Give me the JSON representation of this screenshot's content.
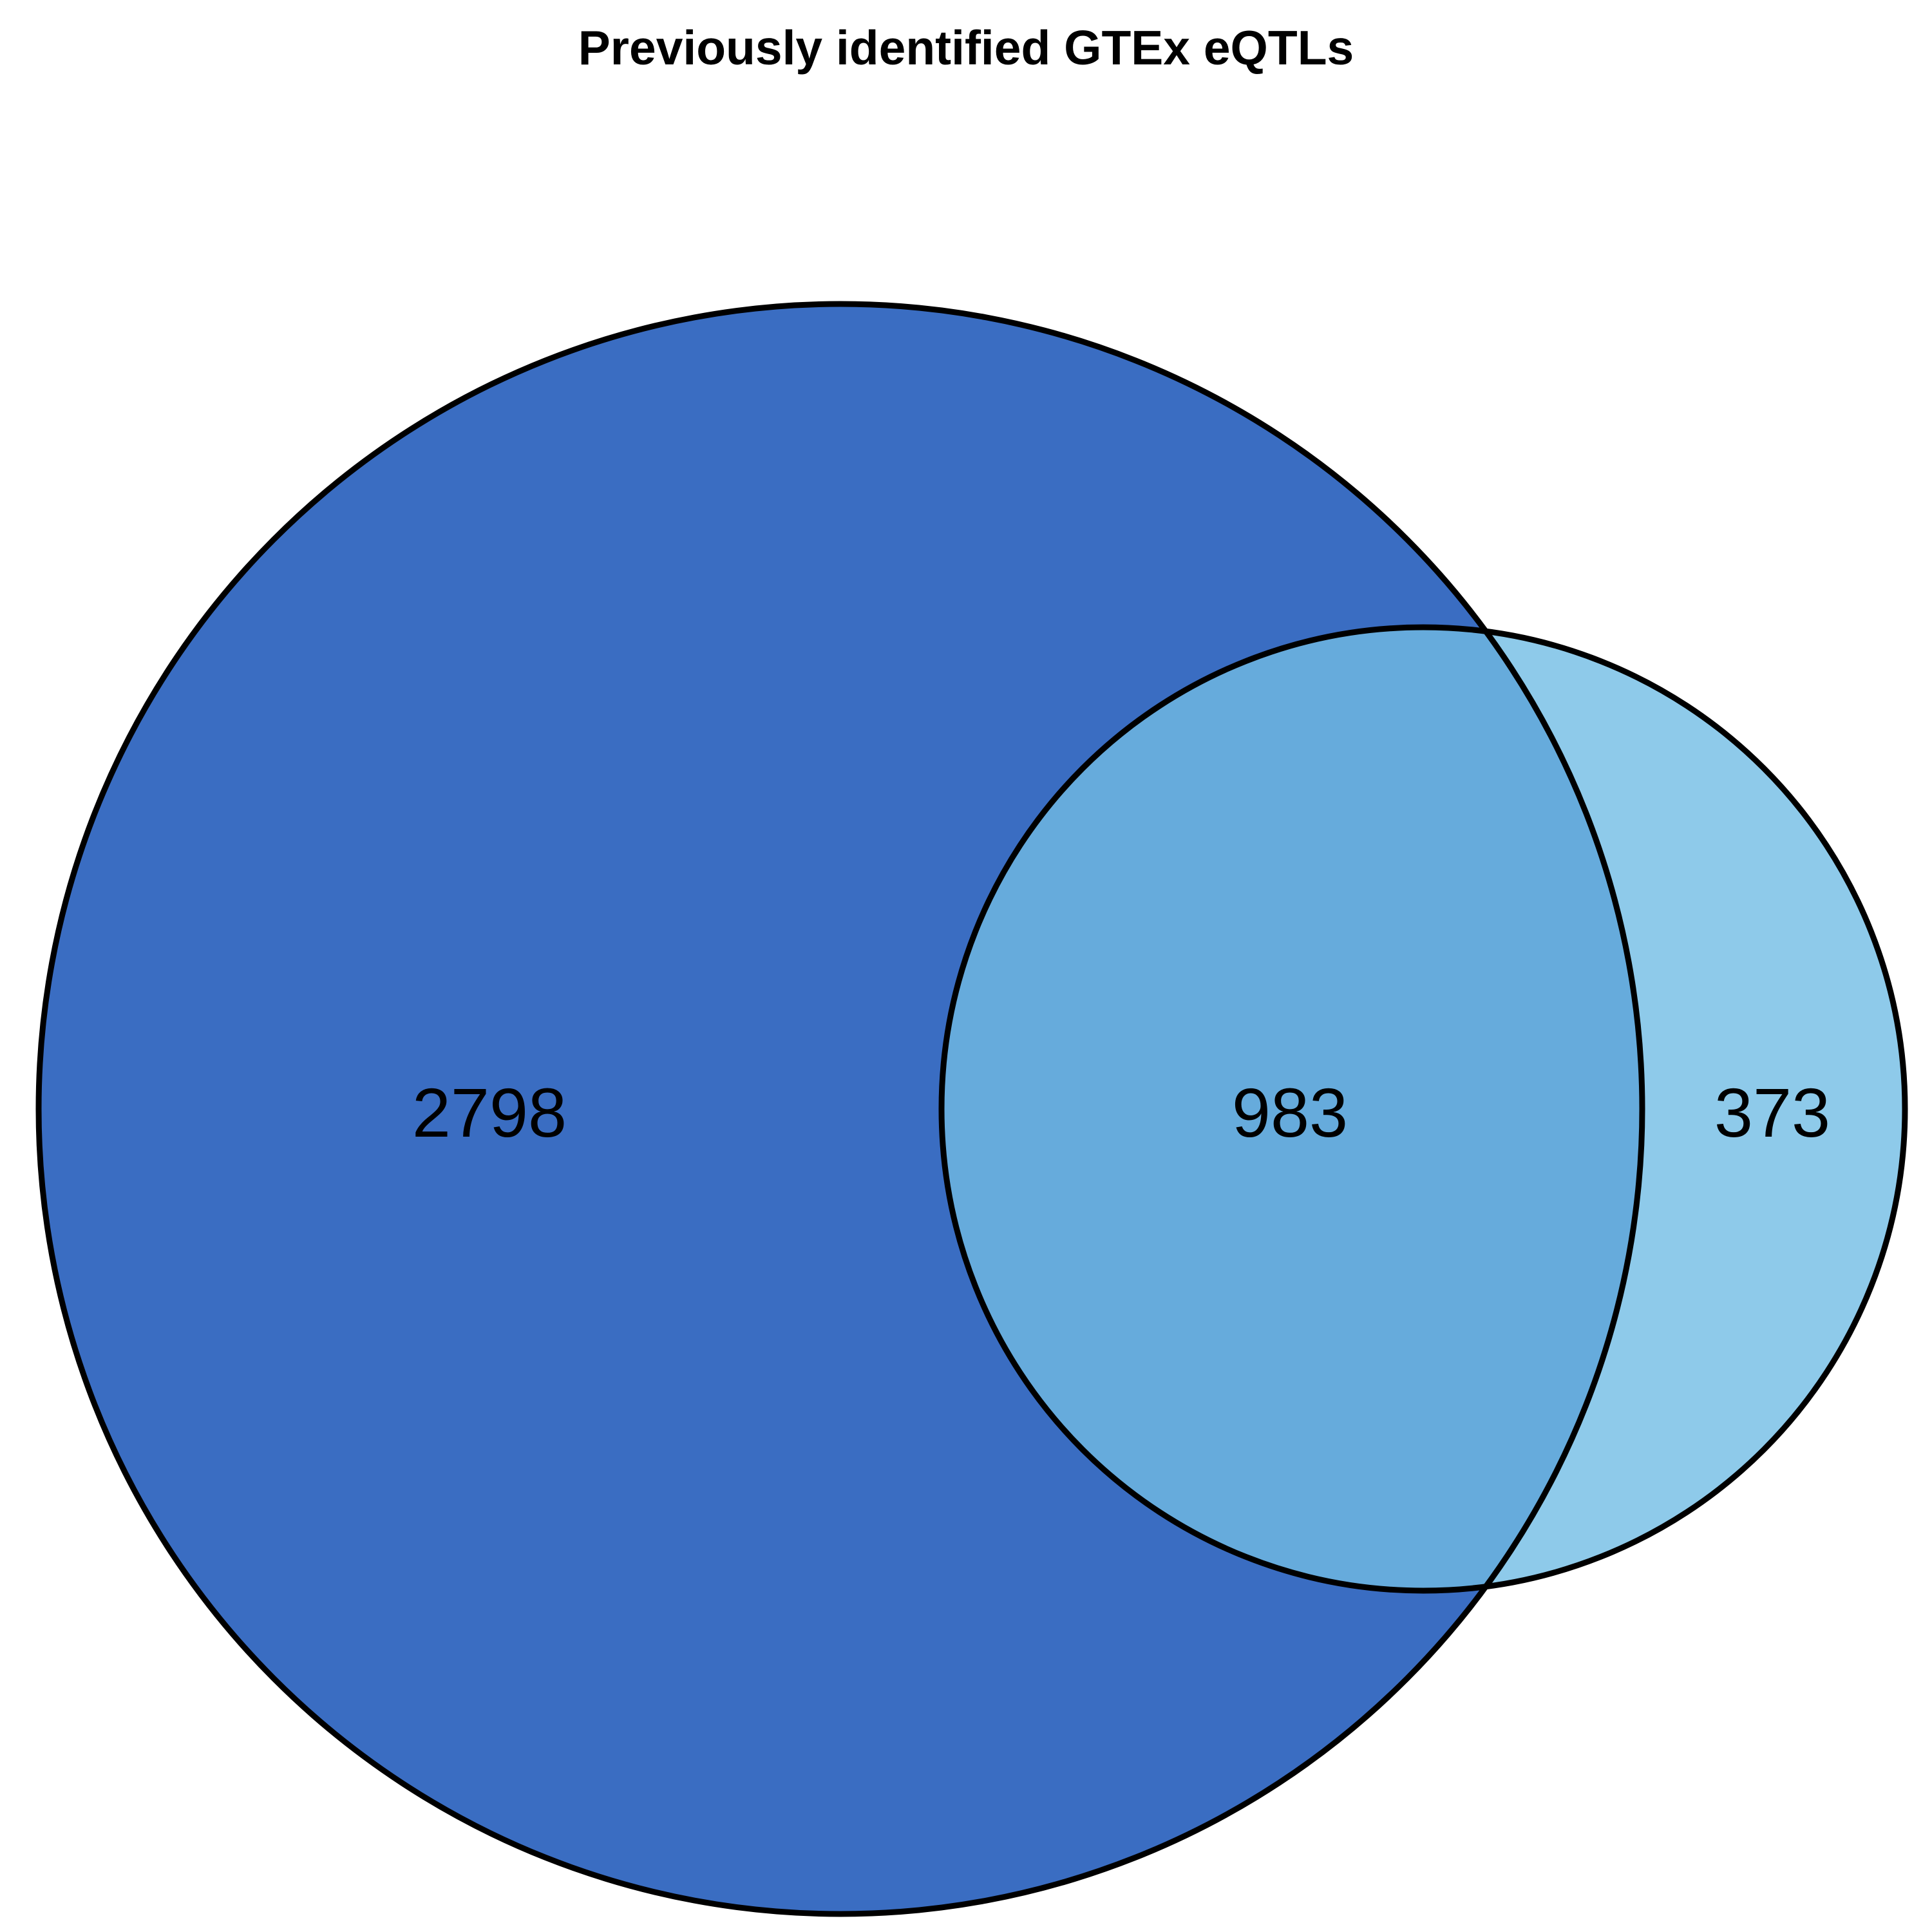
{
  "title": "Previously identified GTEx eQTLs",
  "regions": {
    "left_only": "2798",
    "overlap": "983",
    "right_only": "373"
  },
  "colors": {
    "left_fill": "#3A6DC2",
    "right_fill": "#8ECAEA",
    "overlap_fill": "#66ABDC",
    "outline": "#000000"
  }
}
